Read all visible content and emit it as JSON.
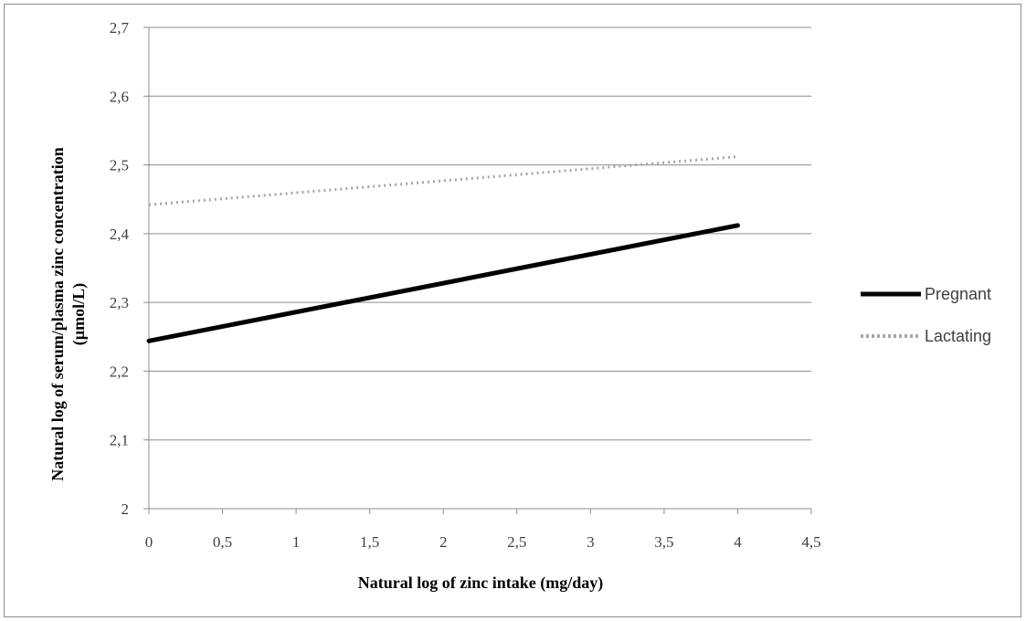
{
  "chart_data": {
    "type": "line",
    "title": "",
    "xlabel": "Natural log of zinc intake (mg/day)",
    "ylabel_line1": "Natural log of serum/plasma zinc concentration",
    "ylabel_line2": "(µmol/L)",
    "xlim": [
      0,
      4.5
    ],
    "ylim": [
      2,
      2.7
    ],
    "x_ticks": [
      "0",
      "0,5",
      "1",
      "1,5",
      "2",
      "2,5",
      "3",
      "3,5",
      "4",
      "4,5"
    ],
    "x_tick_values": [
      0,
      0.5,
      1,
      1.5,
      2,
      2.5,
      3,
      3.5,
      4,
      4.5
    ],
    "y_ticks": [
      "2",
      "2,1",
      "2,2",
      "2,3",
      "2,4",
      "2,5",
      "2,6",
      "2,7"
    ],
    "y_tick_values": [
      2,
      2.1,
      2.2,
      2.3,
      2.4,
      2.5,
      2.6,
      2.7
    ],
    "grid": "horizontal",
    "legend_position": "right",
    "series": [
      {
        "name": "Pregnant",
        "x": [
          0,
          4
        ],
        "y": [
          2.244,
          2.412
        ],
        "color": "#000000",
        "style": "solid"
      },
      {
        "name": "Lactating",
        "x": [
          0,
          4
        ],
        "y": [
          2.442,
          2.512
        ],
        "color": "#a6a6a6",
        "style": "dotted"
      }
    ]
  }
}
